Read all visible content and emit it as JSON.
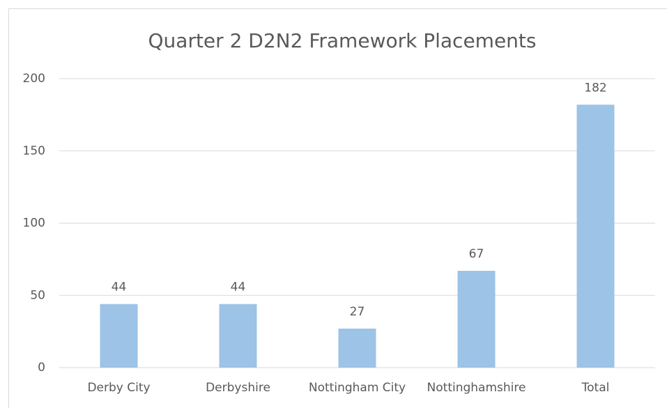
{
  "chart_data": {
    "type": "bar",
    "title": "Quarter 2 D2N2 Framework Placements",
    "categories": [
      "Derby City",
      "Derbyshire",
      "Nottingham City",
      "Nottinghamshire",
      "Total"
    ],
    "values": [
      44,
      44,
      27,
      67,
      182
    ],
    "color": "#9dc3e6",
    "ylim": [
      0,
      200
    ],
    "yticks": [
      0,
      50,
      100,
      150,
      200
    ],
    "grid": true,
    "data_labels": true
  }
}
